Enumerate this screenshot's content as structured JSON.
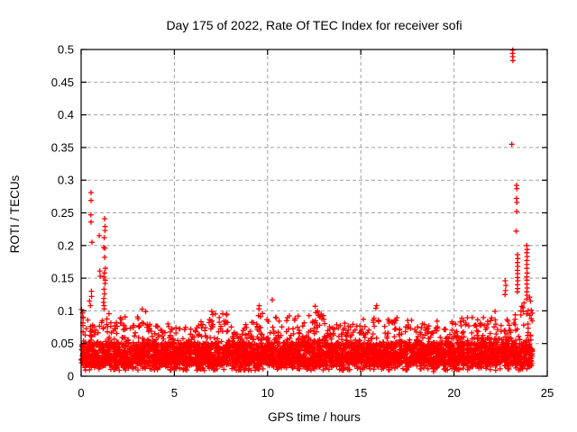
{
  "chart_data": {
    "type": "scatter",
    "title": "Day 175 of 2022, Rate Of TEC Index for receiver sofi",
    "xlabel": "GPS time / hours",
    "ylabel": "ROTI / TECUs",
    "series_name": "ROTI",
    "xlim": [
      0,
      25
    ],
    "ylim": [
      0,
      0.5
    ],
    "xtick_values": [
      0,
      5,
      10,
      15,
      20,
      25
    ],
    "xtick_labels": [
      "0",
      "5",
      "10",
      "15",
      "20",
      "25"
    ],
    "ytick_values": [
      0,
      0.05,
      0.1,
      0.15,
      0.2,
      0.25,
      0.3,
      0.35,
      0.4,
      0.45,
      0.5
    ],
    "ytick_labels": [
      "0",
      "0.05",
      "0.1",
      "0.15",
      "0.2",
      "0.25",
      "0.3",
      "0.35",
      "0.4",
      "0.45",
      "0.5"
    ],
    "grid": true,
    "grid_style": "dashed",
    "grid_color": "#a0a0a0",
    "legend": "none",
    "marker": "plus",
    "marker_color": "#ff0000",
    "axis_color": "#000000",
    "background_color": "#ffffff",
    "dense_band": {
      "description": "dense noise band of + markers covering all 24 hours, solid core approx 0.02-0.06 TECUs with ragged peaks given by top_envelope",
      "x_start": 0,
      "x_step": 0.25,
      "x_end": 24.2,
      "y_base": 0.016,
      "y_low_tail": 0.009,
      "points_per_bin": 48,
      "top_envelope": [
        0.105,
        0.1,
        0.095,
        0.085,
        0.09,
        0.1,
        0.09,
        0.085,
        0.09,
        0.095,
        0.085,
        0.08,
        0.095,
        0.105,
        0.09,
        0.08,
        0.09,
        0.085,
        0.08,
        0.075,
        0.08,
        0.075,
        0.08,
        0.075,
        0.08,
        0.085,
        0.08,
        0.09,
        0.1,
        0.095,
        0.105,
        0.1,
        0.085,
        0.08,
        0.075,
        0.08,
        0.085,
        0.08,
        0.105,
        0.095,
        0.085,
        0.095,
        0.09,
        0.085,
        0.095,
        0.09,
        0.095,
        0.085,
        0.1,
        0.09,
        0.105,
        0.095,
        0.09,
        0.085,
        0.08,
        0.085,
        0.09,
        0.085,
        0.08,
        0.085,
        0.09,
        0.085,
        0.095,
        0.105,
        0.1,
        0.09,
        0.085,
        0.09,
        0.085,
        0.08,
        0.09,
        0.085,
        0.08,
        0.085,
        0.08,
        0.085,
        0.09,
        0.085,
        0.08,
        0.085,
        0.08,
        0.09,
        0.095,
        0.09,
        0.085,
        0.09,
        0.095,
        0.09,
        0.1,
        0.09,
        0.085,
        0.095,
        0.09,
        0.1,
        0.11,
        0.115,
        0.12
      ]
    },
    "outliers": [
      [
        0.02,
        0.102
      ],
      [
        0.08,
        0.097
      ],
      [
        0.45,
        0.115
      ],
      [
        0.5,
        0.108
      ],
      [
        0.53,
        0.281
      ],
      [
        0.53,
        0.269
      ],
      [
        0.52,
        0.247
      ],
      [
        0.53,
        0.236
      ],
      [
        0.58,
        0.205
      ],
      [
        0.55,
        0.13
      ],
      [
        0.56,
        0.122
      ],
      [
        0.97,
        0.215
      ],
      [
        1.0,
        0.161
      ],
      [
        1.02,
        0.153
      ],
      [
        1.26,
        0.241
      ],
      [
        1.28,
        0.229
      ],
      [
        1.28,
        0.223
      ],
      [
        1.24,
        0.212
      ],
      [
        1.21,
        0.197
      ],
      [
        1.28,
        0.196
      ],
      [
        1.26,
        0.182
      ],
      [
        1.3,
        0.165
      ],
      [
        1.25,
        0.158
      ],
      [
        1.21,
        0.152
      ],
      [
        1.29,
        0.147
      ],
      [
        1.28,
        0.142
      ],
      [
        1.23,
        0.133
      ],
      [
        1.25,
        0.126
      ],
      [
        1.22,
        0.119
      ],
      [
        1.2,
        0.113
      ],
      [
        1.23,
        0.108
      ],
      [
        1.24,
        0.103
      ],
      [
        9.55,
        0.108
      ],
      [
        10.25,
        0.117
      ],
      [
        12.55,
        0.107
      ],
      [
        15.85,
        0.108
      ],
      [
        18.9,
        0.007
      ],
      [
        22.74,
        0.146
      ],
      [
        22.78,
        0.139
      ],
      [
        22.76,
        0.131
      ],
      [
        22.73,
        0.125
      ],
      [
        23.15,
        0.499
      ],
      [
        23.14,
        0.494
      ],
      [
        23.15,
        0.489
      ],
      [
        23.16,
        0.483
      ],
      [
        23.1,
        0.355
      ],
      [
        23.35,
        0.292
      ],
      [
        23.37,
        0.287
      ],
      [
        23.35,
        0.272
      ],
      [
        23.37,
        0.266
      ],
      [
        23.36,
        0.252
      ],
      [
        23.33,
        0.222
      ],
      [
        23.4,
        0.186
      ],
      [
        23.42,
        0.18
      ],
      [
        23.4,
        0.174
      ],
      [
        23.42,
        0.168
      ],
      [
        23.4,
        0.162
      ],
      [
        23.41,
        0.157
      ],
      [
        23.4,
        0.151
      ],
      [
        23.42,
        0.146
      ],
      [
        23.4,
        0.14
      ],
      [
        23.41,
        0.134
      ],
      [
        23.4,
        0.129
      ],
      [
        23.9,
        0.2
      ],
      [
        23.92,
        0.194
      ],
      [
        23.9,
        0.189
      ],
      [
        23.92,
        0.183
      ],
      [
        23.9,
        0.177
      ],
      [
        23.91,
        0.171
      ],
      [
        23.9,
        0.165
      ],
      [
        23.92,
        0.158
      ],
      [
        23.9,
        0.152
      ],
      [
        23.91,
        0.147
      ],
      [
        23.9,
        0.141
      ],
      [
        23.92,
        0.135
      ],
      [
        23.9,
        0.129
      ],
      [
        23.91,
        0.124
      ],
      [
        23.9,
        0.118
      ],
      [
        24.05,
        0.121
      ],
      [
        24.1,
        0.115
      ]
    ]
  }
}
